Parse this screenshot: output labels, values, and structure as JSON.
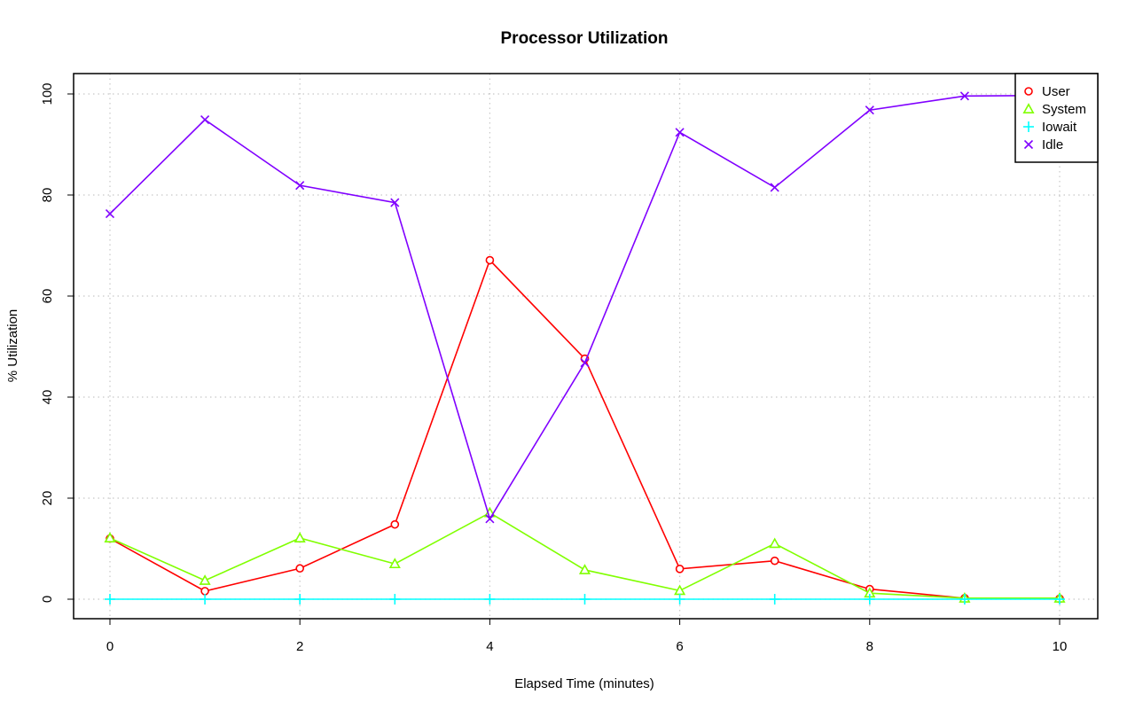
{
  "chart_data": {
    "type": "line",
    "title": "Processor Utilization",
    "xlabel": "Elapsed Time (minutes)",
    "ylabel": "% Utilization",
    "x": [
      0,
      1,
      2,
      3,
      4,
      5,
      6,
      7,
      8,
      9,
      10
    ],
    "xlim": [
      0,
      10
    ],
    "ylim": [
      0,
      100
    ],
    "xticks": [
      0,
      2,
      4,
      6,
      8,
      10
    ],
    "yticks": [
      0,
      20,
      40,
      60,
      80,
      100
    ],
    "grid": true,
    "legend_position": "top-right",
    "series": [
      {
        "name": "User",
        "color": "#ff0000",
        "marker": "circle",
        "values": [
          12.0,
          1.6,
          6.1,
          14.8,
          67.1,
          47.6,
          6.0,
          7.6,
          2.0,
          0.2,
          0.1
        ]
      },
      {
        "name": "System",
        "color": "#80ff00",
        "marker": "triangle",
        "values": [
          12.1,
          3.7,
          12.1,
          7.0,
          17.1,
          5.8,
          1.7,
          11.0,
          1.2,
          0.2,
          0.2
        ]
      },
      {
        "name": "Iowait",
        "color": "#00ffff",
        "marker": "plus",
        "values": [
          0,
          0,
          0,
          0,
          0,
          0,
          0,
          0,
          0,
          0,
          0
        ]
      },
      {
        "name": "Idle",
        "color": "#8000ff",
        "marker": "cross",
        "values": [
          76.3,
          94.9,
          81.9,
          78.5,
          15.9,
          46.8,
          92.4,
          81.5,
          96.8,
          99.6,
          99.7
        ]
      }
    ]
  }
}
